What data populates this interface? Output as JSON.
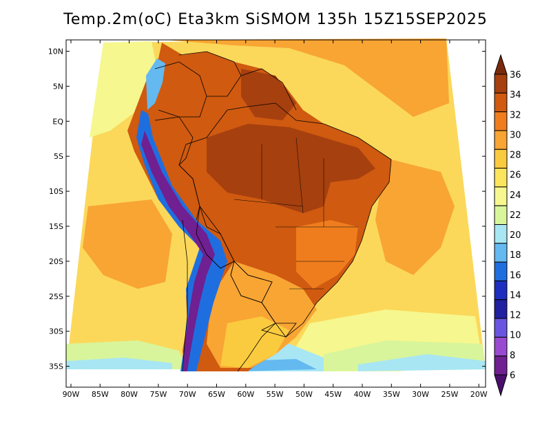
{
  "title": "Temp.2m(oC) Eta3km SiSMOM 135h 15Z15SEP2025",
  "lon_labels": [
    "90W",
    "85W",
    "80W",
    "75W",
    "70W",
    "65W",
    "60W",
    "55W",
    "50W",
    "45W",
    "40W",
    "35W",
    "30W",
    "25W",
    "20W"
  ],
  "lat_labels": [
    "10N",
    "5N",
    "EQ",
    "5S",
    "10S",
    "15S",
    "20S",
    "25S",
    "30S",
    "35S"
  ],
  "colorbar": {
    "labels": [
      "36",
      "34",
      "32",
      "30",
      "28",
      "26",
      "24",
      "22",
      "20",
      "18",
      "16",
      "14",
      "12",
      "10",
      "8",
      "6"
    ],
    "colors": [
      "#7a2a0c",
      "#a6400f",
      "#cf5a10",
      "#ef7d1e",
      "#f8a534",
      "#fbcb3f",
      "#fbe55c",
      "#f6f78e",
      "#d8f59b",
      "#a8e6f3",
      "#63b9f0",
      "#1f6ee0",
      "#1e2fc0",
      "#2020a0",
      "#6a55e0",
      "#9a4ad0",
      "#702090",
      "#4a0f6a"
    ]
  },
  "palette": {
    "ocean_warm": "#fbd85a",
    "ocean_hot": "#f8a534",
    "land_hot": "#cf5a10",
    "land_very_hot": "#a6400f",
    "land_mild": "#f8a534",
    "south_cool": "#d8f59b",
    "andes_cold": "#1f6ee0",
    "andes_frigid": "#702090"
  }
}
